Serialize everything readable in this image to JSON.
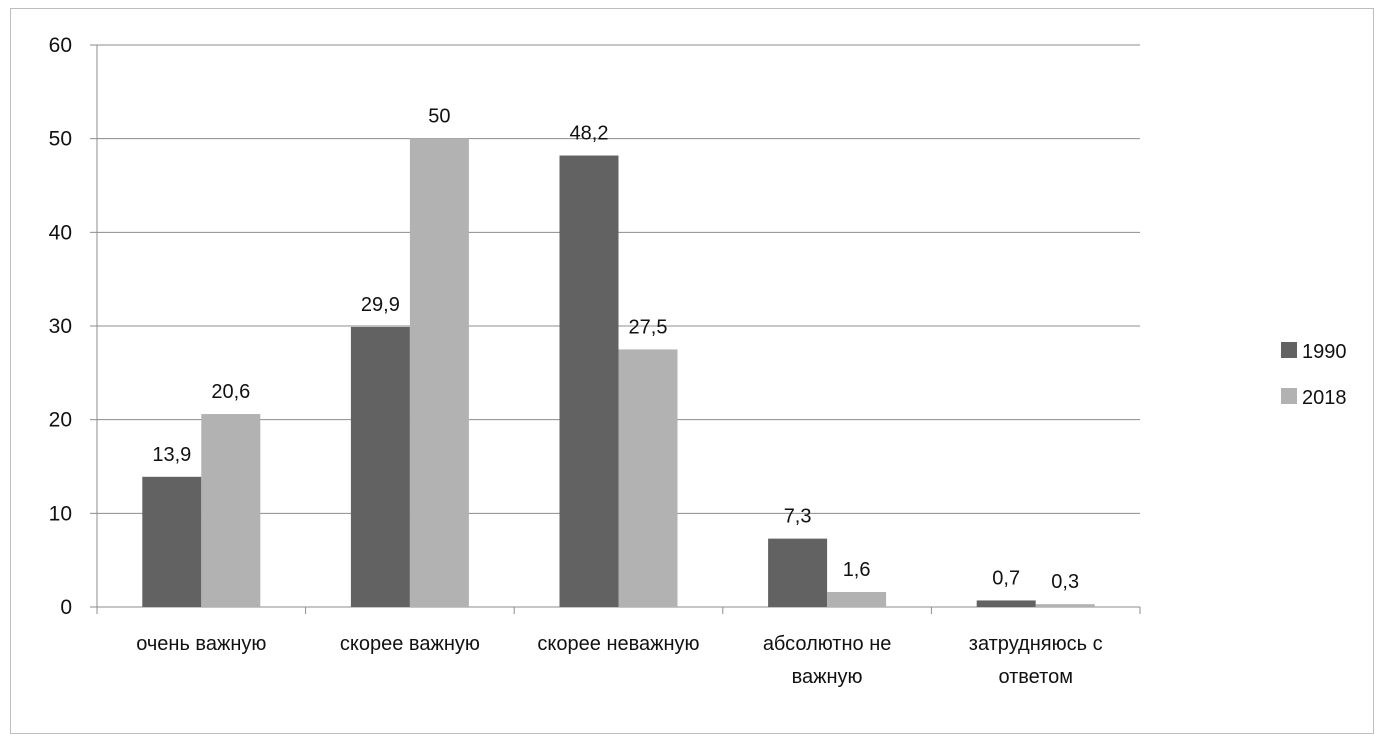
{
  "chart_data": {
    "type": "bar",
    "title": "",
    "xlabel": "",
    "ylabel": "",
    "ylim": [
      0,
      60
    ],
    "yticks": [
      0,
      10,
      20,
      30,
      40,
      50,
      60
    ],
    "grid": true,
    "legend_position": "right",
    "categories": [
      [
        "очень важную"
      ],
      [
        "скорее важную"
      ],
      [
        "скорее неважную"
      ],
      [
        "абсолютно не",
        "важную"
      ],
      [
        "затрудняюсь с",
        "ответом"
      ]
    ],
    "series": [
      {
        "name": "1990",
        "color": "#626262",
        "values": [
          13.9,
          29.9,
          48.2,
          7.3,
          0.7
        ],
        "labels": [
          "13,9",
          "29,9",
          "48,2",
          "7,3",
          "0,7"
        ]
      },
      {
        "name": "2018",
        "color": "#b2b2b2",
        "values": [
          20.6,
          50,
          27.5,
          1.6,
          0.3
        ],
        "labels": [
          "20,6",
          "50",
          "27,5",
          "1,6",
          "0,3"
        ]
      }
    ]
  }
}
